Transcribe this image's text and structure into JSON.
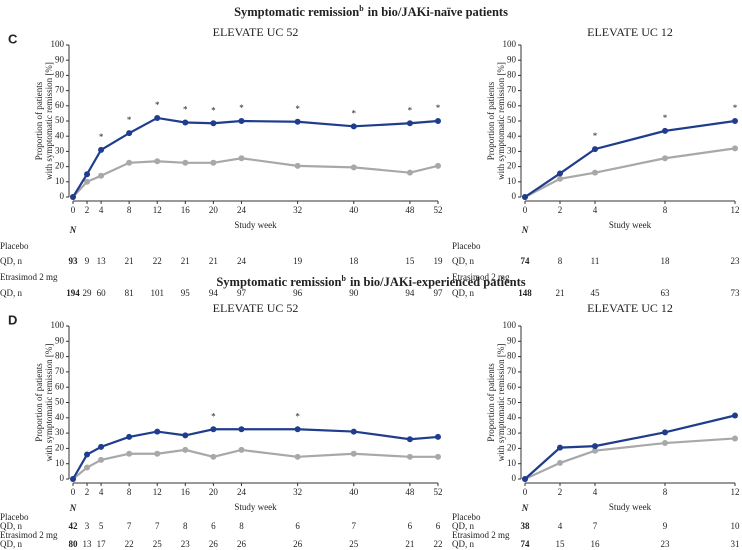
{
  "panels": [
    {
      "label": "C",
      "title_parts": [
        "Symptomatic remission",
        "b",
        "in bio/JAKi-naïve patients"
      ]
    },
    {
      "label": "D",
      "title_parts": [
        "Symptomatic remission",
        "b",
        "in bio/JAKi-experienced patients"
      ]
    }
  ],
  "chart_data": [
    {
      "type": "line",
      "title": "ELEVATE UC 52",
      "xlabel": "Study week",
      "ylabel": [
        "Proportion of patients",
        "with symptomatic remission [%]"
      ],
      "x": [
        0,
        2,
        4,
        8,
        12,
        16,
        20,
        24,
        32,
        40,
        48,
        52
      ],
      "xlim": [
        0,
        52
      ],
      "xticks": [
        0,
        2,
        4,
        8,
        12,
        16,
        20,
        24,
        32,
        40,
        48,
        52
      ],
      "ylim": [
        0,
        100
      ],
      "yticks": [
        0,
        10,
        20,
        30,
        40,
        50,
        60,
        70,
        80,
        90,
        100
      ],
      "series": [
        {
          "name": "Placebo",
          "color": "#a8a8a8",
          "values": [
            0,
            10,
            14,
            22.5,
            23.5,
            22.5,
            22.5,
            25.5,
            20.5,
            19.5,
            16,
            20.5
          ]
        },
        {
          "name": "Etrasimod 2 mg",
          "color": "#1f3d8c",
          "values": [
            0,
            15,
            31,
            42,
            52,
            49,
            48.5,
            50,
            49.5,
            46.5,
            48.5,
            50
          ]
        }
      ],
      "significance": {
        "symbol": "*",
        "x": [
          4,
          8,
          12,
          16,
          20,
          24,
          32,
          40,
          48,
          52
        ]
      },
      "n_table": {
        "header": "N",
        "rows": [
          {
            "label": "QD, n",
            "values": [
              93,
              9,
              13,
              21,
              22,
              21,
              21,
              24,
              19,
              18,
              15,
              19
            ]
          },
          {
            "label": "QD, n",
            "values": [
              194,
              29,
              60,
              81,
              101,
              95,
              94,
              97,
              96,
              90,
              94,
              97
            ]
          }
        ]
      }
    },
    {
      "type": "line",
      "title": "ELEVATE UC 12",
      "xlabel": "Study week",
      "ylabel": [
        "Proportion of patients",
        "with symptomatic remission [%]"
      ],
      "x": [
        0,
        2,
        4,
        8,
        12
      ],
      "xlim": [
        0,
        12
      ],
      "xticks": [
        0,
        2,
        4,
        8,
        12
      ],
      "ylim": [
        0,
        100
      ],
      "yticks": [
        0,
        10,
        20,
        30,
        40,
        50,
        60,
        70,
        80,
        90,
        100
      ],
      "series": [
        {
          "name": "Placebo",
          "color": "#a8a8a8",
          "values": [
            0,
            12,
            16,
            25.5,
            32
          ]
        },
        {
          "name": "Etrasimod 2 mg",
          "color": "#1f3d8c",
          "values": [
            0,
            15.5,
            31.5,
            43.5,
            50
          ]
        }
      ],
      "significance": {
        "symbol": "*",
        "x": [
          4,
          8,
          12
        ]
      },
      "n_table": {
        "header": "N",
        "rows": [
          {
            "label": "QD, n",
            "values": [
              74,
              8,
              11,
              18,
              23
            ]
          },
          {
            "label": "QD, n",
            "values": [
              148,
              21,
              45,
              63,
              73
            ]
          }
        ]
      }
    },
    {
      "type": "line",
      "title": "ELEVATE UC 52",
      "xlabel": "Study week",
      "ylabel": [
        "Proportion of patients",
        "with symptomatic remission [%]"
      ],
      "x": [
        0,
        2,
        4,
        8,
        12,
        16,
        20,
        24,
        32,
        40,
        48,
        52
      ],
      "xlim": [
        0,
        52
      ],
      "xticks": [
        0,
        2,
        4,
        8,
        12,
        16,
        20,
        24,
        32,
        40,
        48,
        52
      ],
      "ylim": [
        0,
        100
      ],
      "yticks": [
        0,
        10,
        20,
        30,
        40,
        50,
        60,
        70,
        80,
        90,
        100
      ],
      "series": [
        {
          "name": "Placebo",
          "color": "#a8a8a8",
          "values": [
            0,
            7.5,
            12.5,
            16.5,
            16.5,
            19,
            14.5,
            19,
            14.5,
            16.5,
            14.5,
            14.5
          ]
        },
        {
          "name": "Etrasimod 2 mg",
          "color": "#1f3d8c",
          "values": [
            0,
            16,
            21,
            27.5,
            31,
            28.5,
            32.5,
            32.5,
            32.5,
            31,
            26,
            27.5
          ]
        }
      ],
      "significance": {
        "symbol": "*",
        "x": [
          20,
          32
        ]
      },
      "n_table": {
        "header": "N",
        "rows": [
          {
            "label": "QD, n",
            "values": [
              42,
              3,
              5,
              7,
              7,
              8,
              6,
              8,
              6,
              7,
              6,
              6
            ]
          },
          {
            "label": "QD, n",
            "values": [
              80,
              13,
              17,
              22,
              25,
              23,
              26,
              26,
              26,
              25,
              21,
              22
            ]
          }
        ]
      }
    },
    {
      "type": "line",
      "title": "ELEVATE UC 12",
      "xlabel": "Study week",
      "ylabel": [
        "Proportion of patients",
        "with symptomatic remission [%]"
      ],
      "x": [
        0,
        2,
        4,
        8,
        12
      ],
      "xlim": [
        0,
        12
      ],
      "xticks": [
        0,
        2,
        4,
        8,
        12
      ],
      "ylim": [
        0,
        100
      ],
      "yticks": [
        0,
        10,
        20,
        30,
        40,
        50,
        60,
        70,
        80,
        90,
        100
      ],
      "series": [
        {
          "name": "Placebo",
          "color": "#a8a8a8",
          "values": [
            0,
            10.5,
            18.5,
            23.5,
            26.5
          ]
        },
        {
          "name": "Etrasimod 2 mg",
          "color": "#1f3d8c",
          "values": [
            0,
            20.5,
            21.5,
            30.5,
            41.5
          ]
        }
      ],
      "n_table": {
        "header": "N",
        "rows": [
          {
            "label": "QD, n",
            "values": [
              38,
              4,
              7,
              9,
              10
            ]
          },
          {
            "label": "QD, n",
            "values": [
              74,
              15,
              16,
              23,
              31
            ]
          }
        ]
      }
    }
  ]
}
